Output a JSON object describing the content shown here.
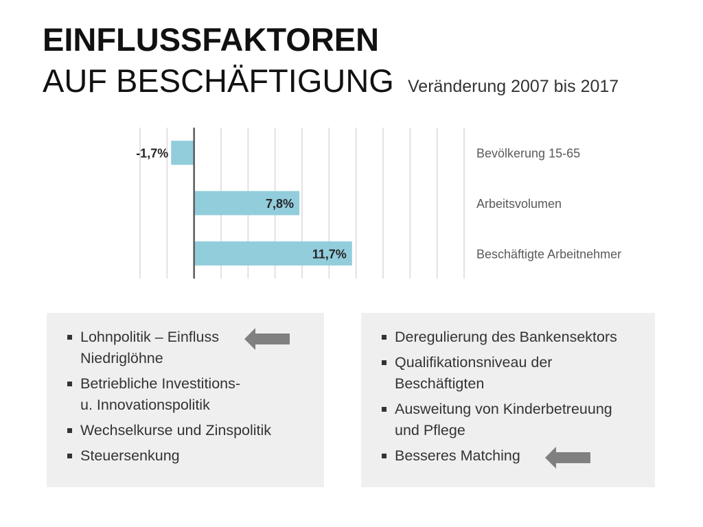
{
  "title": {
    "line1": "EINFLUSSFAKTOREN",
    "line2": "AUF BESCHÄFTIGUNG",
    "subtitle": "Veränderung 2007 bis 2017"
  },
  "chart_data": {
    "type": "bar",
    "orientation": "horizontal",
    "categories": [
      "Bevölkerung 15-65",
      "Arbeitsvolumen",
      "Beschäftigte Arbeitnehmer"
    ],
    "values": [
      -1.7,
      7.8,
      11.7
    ],
    "value_labels": [
      "-1,7%",
      "7,8%",
      "11,7%"
    ],
    "xlim": [
      -4,
      20
    ],
    "grid": true,
    "legend": "none",
    "bar_color": "#92cddc"
  },
  "left_box": {
    "items": [
      {
        "lines": [
          "Lohnpolitik – Einfluss",
          "Niedriglöhne"
        ],
        "arrow": true
      },
      {
        "lines": [
          "Betriebliche Investitions-",
          "u. Innovationspolitik"
        ],
        "arrow": false
      },
      {
        "lines": [
          "Wechselkurse und Zinspolitik"
        ],
        "arrow": false
      },
      {
        "lines": [
          "Steuersenkung"
        ],
        "arrow": false
      }
    ]
  },
  "right_box": {
    "items": [
      {
        "lines": [
          "Deregulierung des Bankensektors"
        ],
        "arrow": false
      },
      {
        "lines": [
          "Qualifikationsniveau der",
          "Beschäftigten"
        ],
        "arrow": false
      },
      {
        "lines": [
          "Ausweitung von Kinderbetreuung",
          "und Pflege"
        ],
        "arrow": false
      },
      {
        "lines": [
          "Besseres Matching"
        ],
        "arrow": true
      }
    ]
  },
  "colors": {
    "bar": "#92cddc",
    "grid": "#d9d9d9",
    "axis": "#595959",
    "box_bg": "#efefef",
    "arrow": "#808080"
  },
  "icons": {
    "arrow": "left-arrow-icon",
    "bullet": "square-bullet-icon"
  }
}
